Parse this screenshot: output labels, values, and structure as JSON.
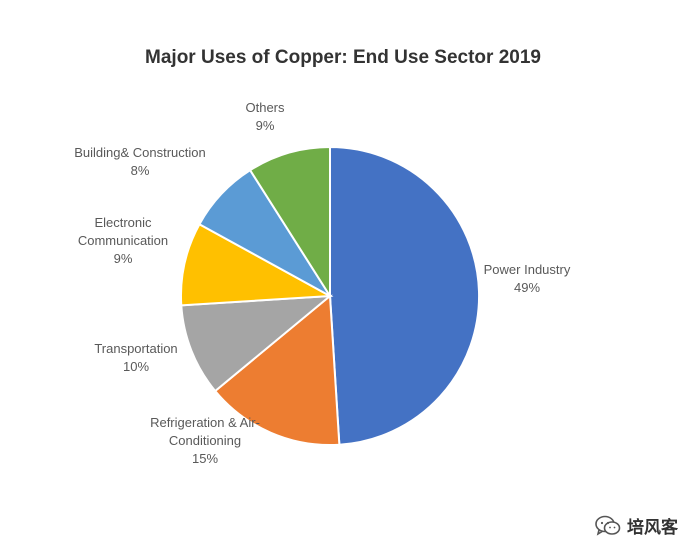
{
  "chart_data": {
    "type": "pie",
    "title": "Major Uses of Copper: End Use Sector 2019",
    "slices": [
      {
        "label_lines": [
          "Power Industry"
        ],
        "value_label": "49%",
        "value": 49,
        "color": "#4472C4"
      },
      {
        "label_lines": [
          "Refrigeration & Air-",
          "Conditioning"
        ],
        "value_label": "15%",
        "value": 15,
        "color": "#ED7D31"
      },
      {
        "label_lines": [
          "Transportation"
        ],
        "value_label": "10%",
        "value": 10,
        "color": "#A5A5A5"
      },
      {
        "label_lines": [
          "Electronic",
          "Communication"
        ],
        "value_label": "9%",
        "value": 9,
        "color": "#FFC000"
      },
      {
        "label_lines": [
          "Building& Construction"
        ],
        "value_label": "8%",
        "value": 8,
        "color": "#5B9BD5"
      },
      {
        "label_lines": [
          "Others"
        ],
        "value_label": "9%",
        "value": 9,
        "color": "#70AD47"
      }
    ],
    "start_angle_deg": 0,
    "direction": "clockwise"
  },
  "watermark": {
    "text": "培风客",
    "icon": "wechat-icon"
  }
}
